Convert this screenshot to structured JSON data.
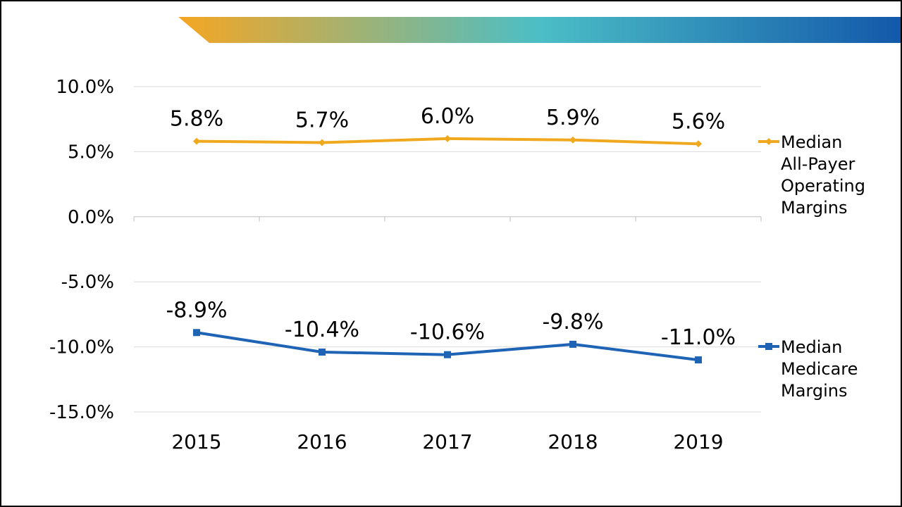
{
  "chart_data": {
    "type": "line",
    "categories": [
      "2015",
      "2016",
      "2017",
      "2018",
      "2019"
    ],
    "series": [
      {
        "name": "Median All-Payer Operating Margins",
        "legend_lines": [
          "Median",
          "All-Payer",
          "Operating",
          "Margins"
        ],
        "values": [
          5.8,
          5.7,
          6.0,
          5.9,
          5.6
        ],
        "labels": [
          "5.8%",
          "5.7%",
          "6.0%",
          "5.9%",
          "5.6%"
        ],
        "color": "#F0A81E",
        "marker": "diamond"
      },
      {
        "name": "Median Medicare Margins",
        "legend_lines": [
          "Median",
          "Medicare",
          "Margins"
        ],
        "values": [
          -8.9,
          -10.4,
          -10.6,
          -9.8,
          -11.0
        ],
        "labels": [
          "-8.9%",
          "-10.4%",
          "-10.6%",
          "-9.8%",
          "-11.0%"
        ],
        "color": "#1F63B5",
        "marker": "square"
      }
    ],
    "y_ticks": [
      10,
      5,
      0,
      -5,
      -10,
      -15
    ],
    "y_tick_labels": [
      "10.0%",
      "5.0%",
      "0.0%",
      "-5.0%",
      "-10.0%",
      "-15.0%"
    ],
    "ylim": [
      -15,
      10
    ],
    "grid": true,
    "legend_position": "right"
  },
  "colors": {
    "banner_start": "#F5A623",
    "banner_mid": "#4BBEC6",
    "banner_end": "#1358AA",
    "grid": "#D9D9D9",
    "axis": "#BFBFBF"
  }
}
